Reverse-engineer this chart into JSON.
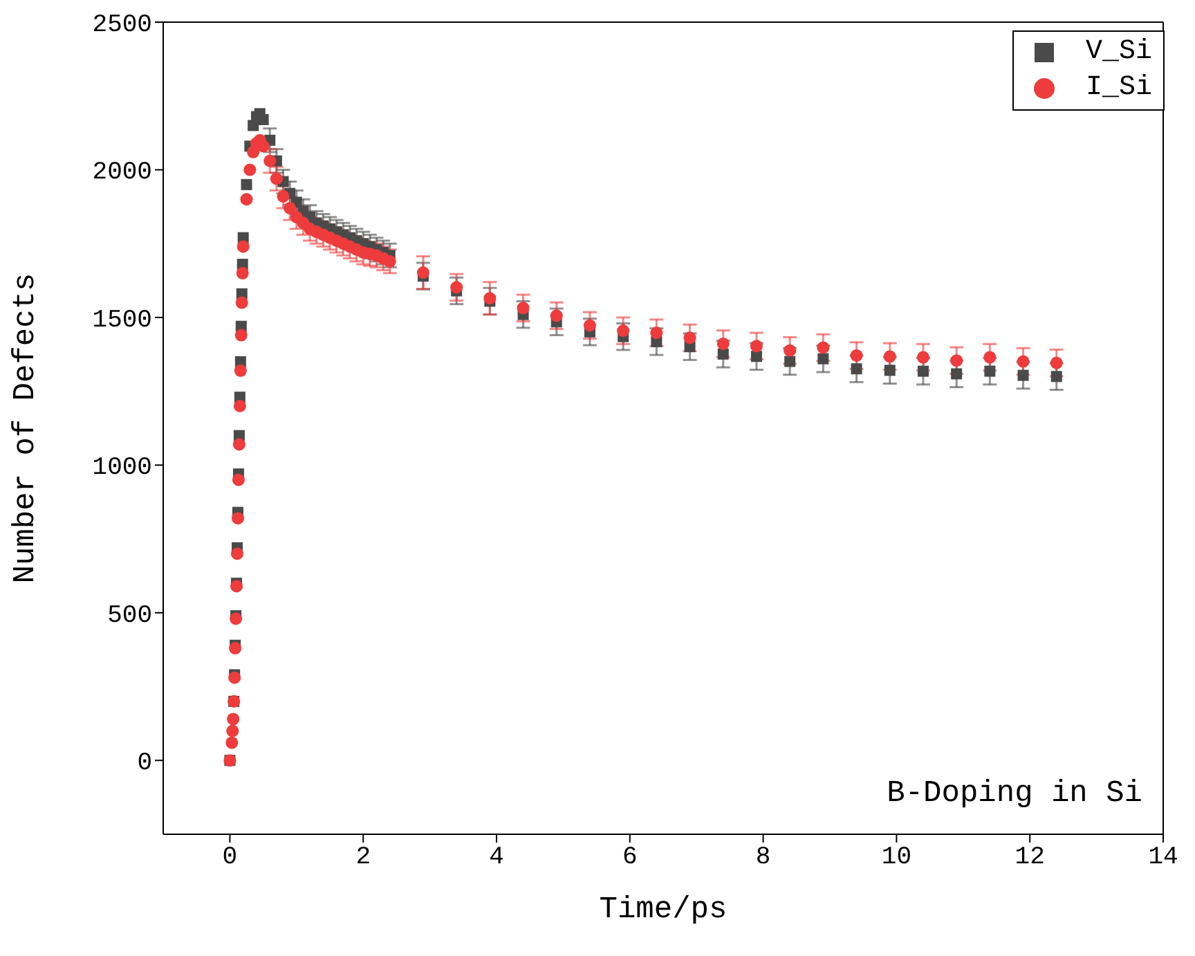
{
  "chart_data": {
    "type": "scatter",
    "xlabel": "Time/ps",
    "ylabel": "Number of Defects",
    "xlim": [
      -1,
      14
    ],
    "xticks": [
      0,
      2,
      4,
      6,
      8,
      10,
      12,
      14
    ],
    "ylim": [
      -250,
      2500
    ],
    "yticks": [
      0,
      500,
      1000,
      1500,
      2000,
      2500
    ],
    "grid": false,
    "legend": "top right",
    "annotations": [
      "B-Doping in Si"
    ],
    "x": [
      0,
      0.03,
      0.04,
      0.05,
      0.06,
      0.07,
      0.08,
      0.09,
      0.1,
      0.11,
      0.12,
      0.13,
      0.14,
      0.15,
      0.16,
      0.17,
      0.18,
      0.19,
      0.2,
      0.25,
      0.3,
      0.35,
      0.4,
      0.45,
      0.5,
      0.6,
      0.7,
      0.8,
      0.9,
      1.0,
      1.1,
      1.2,
      1.3,
      1.4,
      1.5,
      1.6,
      1.7,
      1.8,
      1.9,
      2.0,
      2.1,
      2.2,
      2.3,
      2.4,
      2.9,
      3.4,
      3.9,
      4.4,
      4.9,
      5.4,
      5.9,
      6.4,
      6.9,
      7.4,
      7.9,
      8.4,
      8.9,
      9.4,
      9.9,
      10.4,
      10.9,
      11.4,
      11.9,
      12.4
    ],
    "series": [
      {
        "name": "V_Si",
        "color": "#4a4a4a",
        "marker": "square",
        "values": [
          0,
          null,
          null,
          null,
          200,
          290,
          390,
          490,
          600,
          720,
          840,
          970,
          1100,
          1230,
          1350,
          1470,
          1580,
          1680,
          1770,
          1950,
          2080,
          2150,
          2180,
          2190,
          2170,
          2100,
          2030,
          1960,
          1920,
          1890,
          1860,
          1840,
          1820,
          1810,
          1800,
          1790,
          1780,
          1770,
          1760,
          1750,
          1740,
          1730,
          1720,
          1710,
          1640,
          1590,
          1555,
          1510,
          1485,
          1451,
          1435,
          1418,
          1401,
          1376,
          1368,
          1351,
          1360,
          1326,
          1321,
          1318,
          1309,
          1318,
          1304,
          1300
        ],
        "errors": [
          null,
          null,
          null,
          null,
          null,
          null,
          null,
          null,
          null,
          null,
          null,
          null,
          null,
          null,
          null,
          null,
          null,
          null,
          null,
          null,
          null,
          null,
          null,
          null,
          null,
          40,
          40,
          40,
          40,
          40,
          40,
          40,
          40,
          40,
          40,
          40,
          40,
          40,
          40,
          40,
          40,
          40,
          40,
          40,
          45,
          45,
          45,
          45,
          45,
          45,
          45,
          45,
          45,
          45,
          45,
          45,
          45,
          45,
          45,
          45,
          45,
          45,
          45,
          45
        ]
      },
      {
        "name": "I_Si",
        "color": "#ee3b3b",
        "marker": "circle",
        "values": [
          0,
          60,
          100,
          140,
          200,
          280,
          380,
          480,
          590,
          700,
          820,
          950,
          1070,
          1200,
          1320,
          1440,
          1550,
          1650,
          1740,
          1900,
          2000,
          2060,
          2090,
          2100,
          2080,
          2030,
          1970,
          1910,
          1870,
          1840,
          1820,
          1800,
          1790,
          1780,
          1770,
          1760,
          1750,
          1740,
          1730,
          1720,
          1715,
          1710,
          1700,
          1690,
          1652,
          1602,
          1565,
          1532,
          1506,
          1473,
          1455,
          1448,
          1431,
          1411,
          1403,
          1388,
          1398,
          1371,
          1368,
          1365,
          1354,
          1365,
          1351,
          1346
        ],
        "errors": [
          null,
          null,
          null,
          null,
          null,
          null,
          null,
          null,
          null,
          null,
          null,
          null,
          null,
          null,
          null,
          null,
          null,
          null,
          null,
          null,
          null,
          null,
          null,
          null,
          null,
          40,
          40,
          40,
          40,
          40,
          40,
          40,
          40,
          40,
          40,
          40,
          40,
          40,
          40,
          40,
          40,
          40,
          40,
          40,
          55,
          45,
          55,
          45,
          45,
          45,
          45,
          45,
          45,
          45,
          45,
          45,
          45,
          45,
          45,
          45,
          45,
          45,
          45,
          45
        ]
      }
    ]
  }
}
